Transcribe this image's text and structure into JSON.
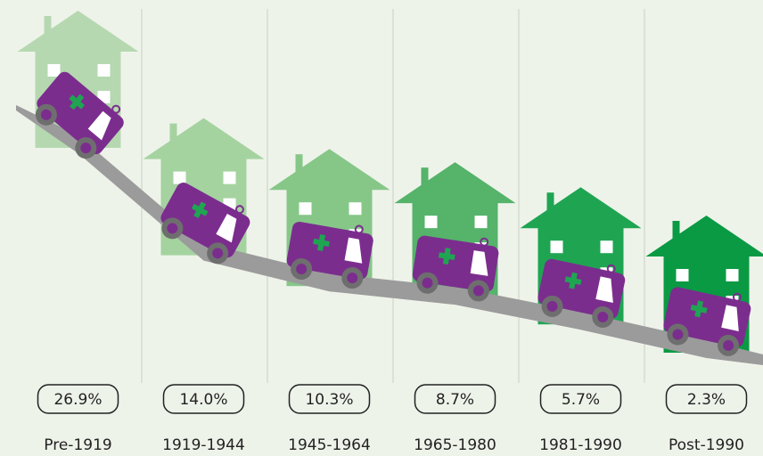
{
  "chart_data": {
    "type": "pictorial",
    "categories": [
      "Pre-1919",
      "1919-1944",
      "1945-1964",
      "1965-1980",
      "1981-1990",
      "Post-1990"
    ],
    "values": [
      26.9,
      14.0,
      10.3,
      8.7,
      5.7,
      2.3
    ],
    "value_labels": [
      "26.9%",
      "14.0%",
      "10.3%",
      "8.7%",
      "5.7%",
      "2.3%"
    ],
    "house_colors": [
      "#b5d8b0",
      "#a5d3a0",
      "#86c788",
      "#55b36a",
      "#1fa552",
      "#0a9a43"
    ],
    "color": "#7b2d8e"
  }
}
